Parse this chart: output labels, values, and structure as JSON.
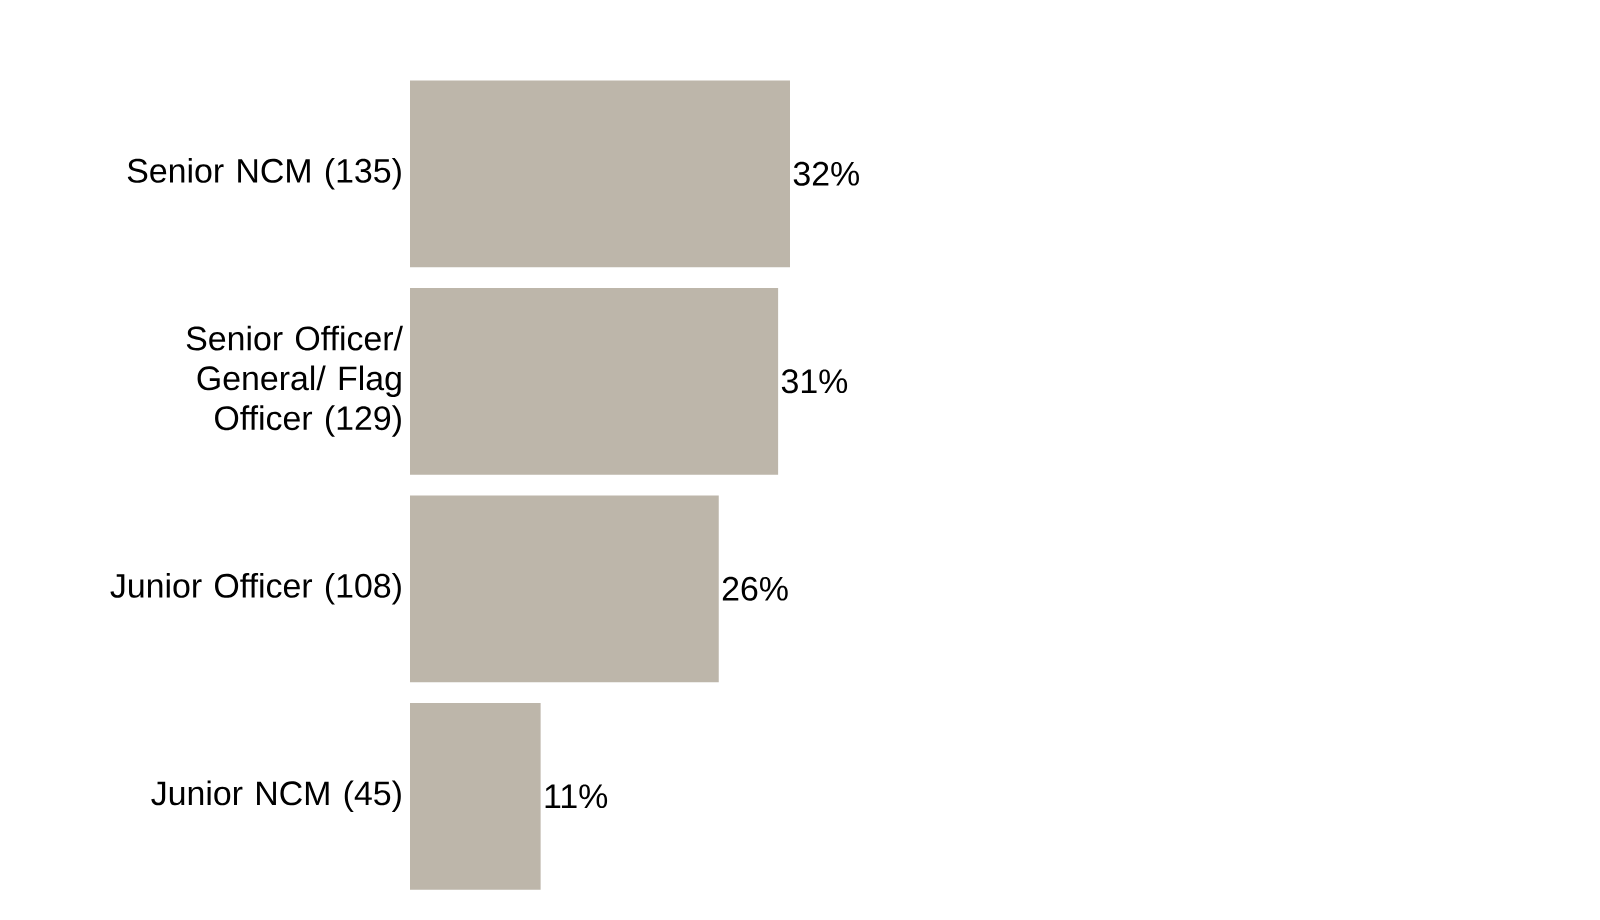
{
  "chart_data": {
    "type": "bar",
    "orientation": "horizontal",
    "categories": [
      "Senior NCM (135)",
      "Senior Officer/ General/ Flag Officer (129)",
      "Junior Officer (108)",
      "Junior NCM (45)"
    ],
    "values": [
      32,
      31,
      26,
      11
    ],
    "value_labels": [
      "32%",
      "31%",
      "26%",
      "11%"
    ],
    "color": "#bdb6aa",
    "tick_labels": "y"
  }
}
